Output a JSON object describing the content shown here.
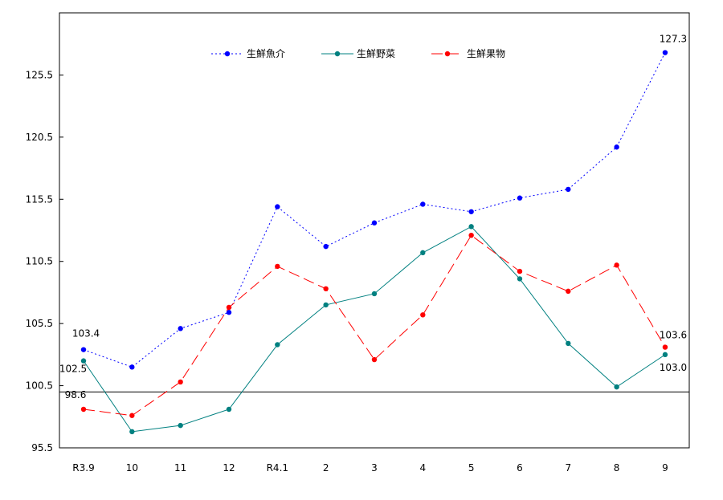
{
  "chart_data": {
    "type": "line",
    "categories": [
      "R3.9",
      "10",
      "11",
      "12",
      "R4.1",
      "2",
      "3",
      "4",
      "5",
      "6",
      "7",
      "8",
      "9"
    ],
    "yticks": [
      "95.5",
      "100.5",
      "105.5",
      "110.5",
      "115.5",
      "120.5",
      "125.5"
    ],
    "ylim": [
      95.5,
      130.5
    ],
    "reference_line": 100,
    "grid": false,
    "legend_position": "top-center",
    "series": [
      {
        "name": "生鮮魚介",
        "color": "#0000ff",
        "style": "dotted",
        "values": [
          103.4,
          102.0,
          105.1,
          106.4,
          114.9,
          111.7,
          113.6,
          115.1,
          114.5,
          115.6,
          116.3,
          119.7,
          127.3
        ]
      },
      {
        "name": "生鮮野菜",
        "color": "#008080",
        "style": "solid",
        "values": [
          102.5,
          96.8,
          97.3,
          98.6,
          103.8,
          107.0,
          107.9,
          111.2,
          113.3,
          109.1,
          103.9,
          100.4,
          103.0
        ]
      },
      {
        "name": "生鮮果物",
        "color": "#ff0000",
        "style": "dashed",
        "values": [
          98.6,
          98.1,
          100.8,
          106.8,
          110.1,
          108.3,
          102.6,
          106.2,
          112.6,
          109.7,
          108.1,
          110.2,
          103.6
        ]
      }
    ],
    "data_labels": [
      {
        "series": 0,
        "index": 0,
        "text": "103.4"
      },
      {
        "series": 1,
        "index": 0,
        "text": "102.5"
      },
      {
        "series": 2,
        "index": 0,
        "text": "98.6"
      },
      {
        "series": 0,
        "index": 12,
        "text": "127.3"
      },
      {
        "series": 2,
        "index": 12,
        "text": "103.6"
      },
      {
        "series": 1,
        "index": 12,
        "text": "103.0"
      }
    ]
  }
}
